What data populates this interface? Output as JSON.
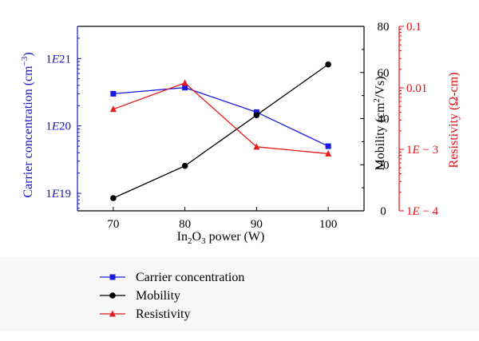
{
  "chart_data": {
    "type": "line",
    "x": [
      70,
      80,
      90,
      100
    ],
    "xlabel": "In2O3 power (W)",
    "xlabel_parts": {
      "pre": "In",
      "sub1": "2",
      "mid": "O",
      "sub2": "3",
      "post": " power (W)"
    },
    "xlim": [
      65,
      105
    ],
    "xticks": [
      "70",
      "80",
      "90",
      "100"
    ],
    "axes": {
      "left": {
        "label": "Carrier concentration (cm^-3)",
        "label_parts": {
          "pre": "Carrier concentration (cm",
          "sup": "−3",
          "post": ")"
        },
        "scale": "log",
        "range": [
          5.5e+18,
          3e+21
        ],
        "ticks": [
          {
            "value": 1e+19,
            "label": "1E19"
          },
          {
            "value": 1e+20,
            "label": "1E20"
          },
          {
            "value": 1e+21,
            "label": "1E21"
          }
        ],
        "color": "#1515cc"
      },
      "right1": {
        "label": "Mobility (cm^2/Vs)",
        "label_parts": {
          "pre": "Mobility (cm",
          "sup": "2",
          "post": "/Vs)"
        },
        "scale": "linear",
        "range": [
          0,
          80
        ],
        "ticks": [
          {
            "value": 0,
            "label": "0"
          },
          {
            "value": 20,
            "label": "20"
          },
          {
            "value": 40,
            "label": "40"
          },
          {
            "value": 60,
            "label": "60"
          },
          {
            "value": 80,
            "label": "80"
          }
        ],
        "color": "#000000"
      },
      "right2": {
        "label": "Resistivity (Ω-cm)",
        "scale": "log",
        "range": [
          0.0001,
          0.1
        ],
        "ticks": [
          {
            "value": 0.0001,
            "label": "1E − 4"
          },
          {
            "value": 0.001,
            "label": "1E − 3"
          },
          {
            "value": 0.01,
            "label": "0.01"
          },
          {
            "value": 0.1,
            "label": "0.1"
          }
        ],
        "color": "#dd1111"
      }
    },
    "series": [
      {
        "name": "Carrier concentration",
        "axis": "left",
        "color": "#1a1ae6",
        "marker": "square",
        "values": [
          3e+20,
          3.7e+20,
          1.6e+20,
          5e+19
        ]
      },
      {
        "name": "Mobility",
        "axis": "right1",
        "color": "#000000",
        "marker": "circle",
        "values": [
          5.5,
          19.5,
          41.5,
          63.5
        ]
      },
      {
        "name": "Resistivity",
        "axis": "right2",
        "color": "#e61a1a",
        "marker": "triangle",
        "values": [
          0.0045,
          0.012,
          0.0011,
          0.00085
        ]
      }
    ],
    "grid": false,
    "legend": "bottom"
  }
}
